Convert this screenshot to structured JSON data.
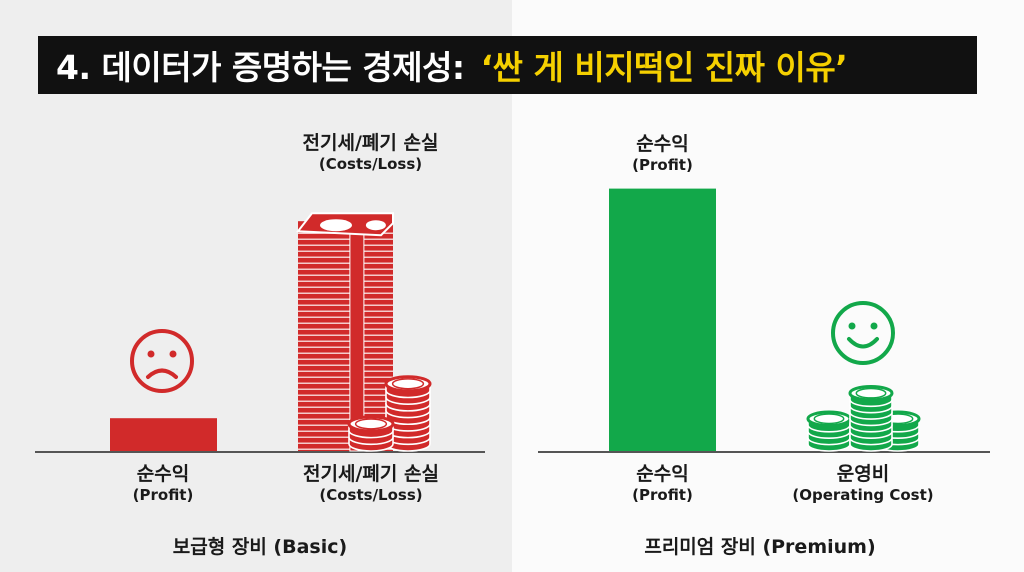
{
  "title": {
    "main": "4. 데이터가 증명하는 경제성:",
    "highlight": "‘싼 게 비지떡인 진짜 이유’"
  },
  "colors": {
    "basic": "#d12a2a",
    "premium": "#12a84a",
    "title_bg": "#111111",
    "title_highlight": "#f5d000"
  },
  "icons": {
    "basic_face": "sad-face-icon",
    "premium_face": "smiley-face-icon",
    "basic_cost": "money-stack-icon",
    "premium_cost": "coin-stack-icon"
  },
  "chart_data": [
    {
      "type": "bar",
      "group_label": "보급형 장비 (Basic)",
      "categories": [
        {
          "ko": "순수익",
          "en": "(Profit)"
        },
        {
          "ko": "전기세/폐기 손실",
          "en": "(Costs/Loss)"
        }
      ],
      "top_labels": [
        {
          "ko": "",
          "en": ""
        },
        {
          "ko": "전기세/폐기 손실",
          "en": "(Costs/Loss)"
        }
      ],
      "values": [
        8,
        58
      ],
      "ylim": [
        0,
        100
      ],
      "xlabel": "",
      "ylabel": ""
    },
    {
      "type": "bar",
      "group_label": "프리미엄 장비 (Premium)",
      "categories": [
        {
          "ko": "순수익",
          "en": "(Profit)"
        },
        {
          "ko": "운영비",
          "en": "(Operating Cost)"
        }
      ],
      "top_labels": [
        {
          "ko": "순수익",
          "en": "(Profit)"
        },
        {
          "ko": "",
          "en": ""
        }
      ],
      "values": [
        64,
        15
      ],
      "ylim": [
        0,
        100
      ],
      "xlabel": "",
      "ylabel": ""
    }
  ]
}
